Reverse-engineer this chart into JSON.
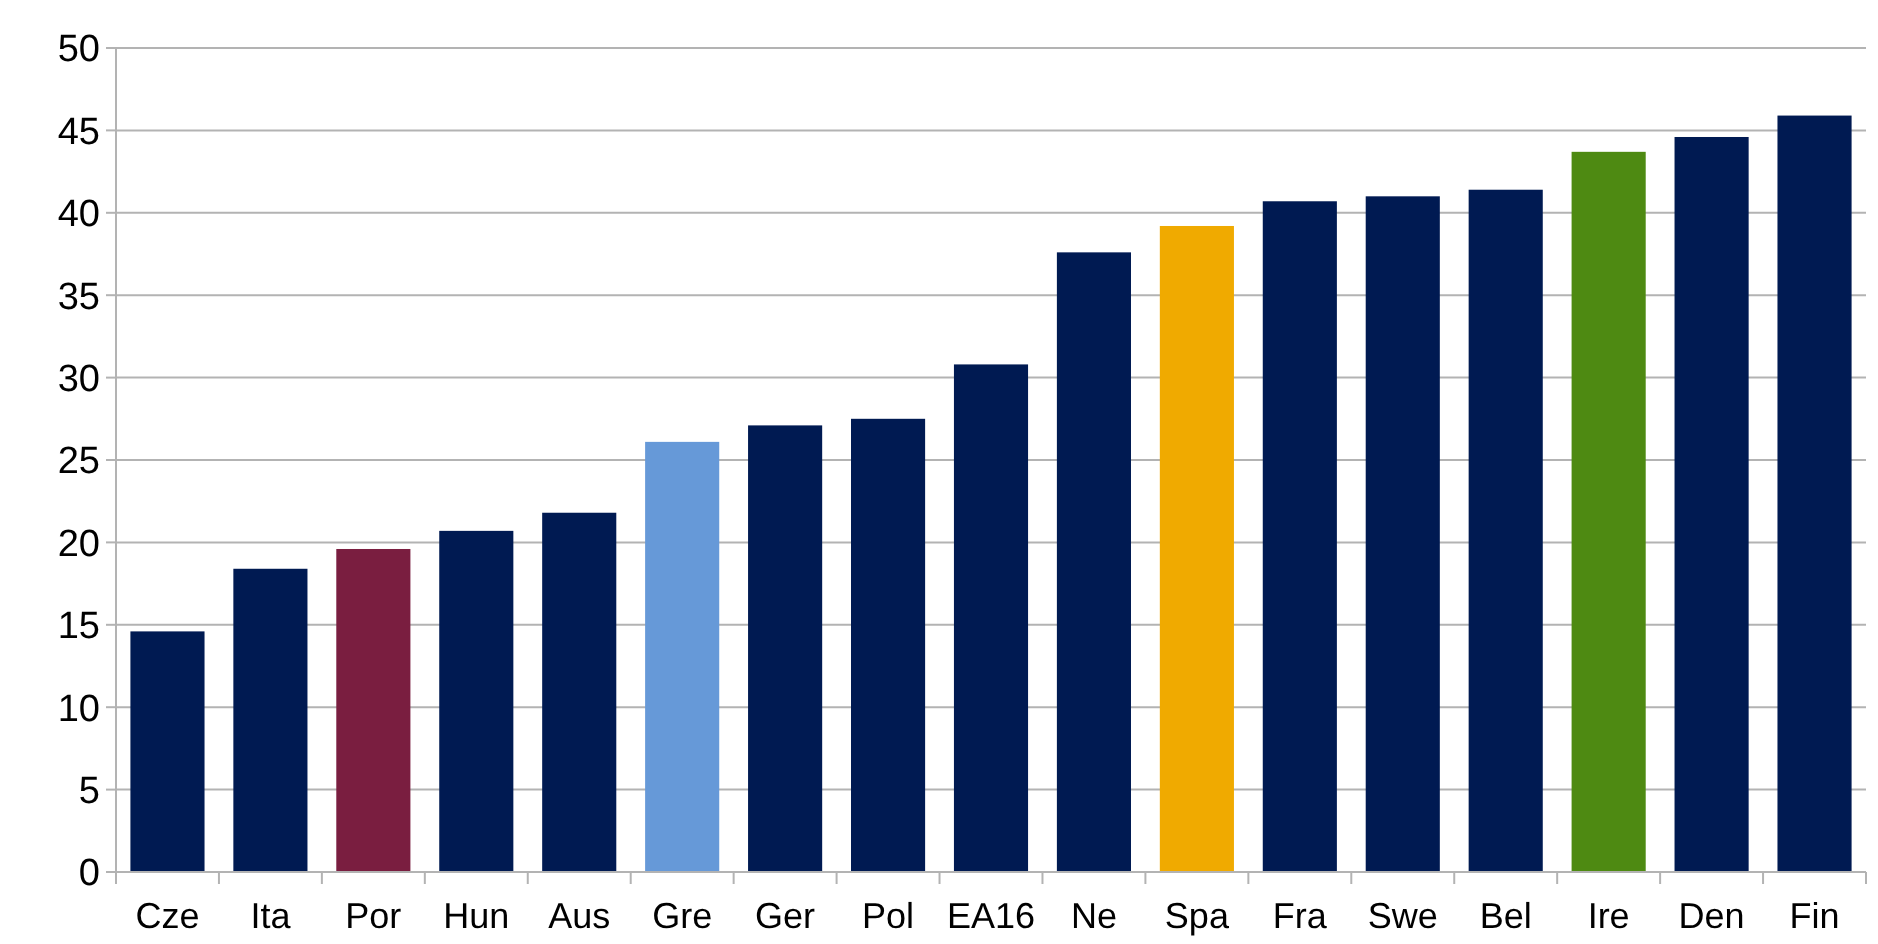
{
  "chart_data": {
    "type": "bar",
    "categories": [
      "Cze",
      "Ita",
      "Por",
      "Hun",
      "Aus",
      "Gre",
      "Ger",
      "Pol",
      "EA16",
      "Ne",
      "Spa",
      "Fra",
      "Swe",
      "Bel",
      "Ire",
      "Den",
      "Fin"
    ],
    "values": [
      14.6,
      18.4,
      19.6,
      20.7,
      21.8,
      26.1,
      27.1,
      27.5,
      30.8,
      37.6,
      39.2,
      40.7,
      41.0,
      41.4,
      43.7,
      44.6,
      45.9
    ],
    "colors": [
      "#001a52",
      "#001a52",
      "#7a1e40",
      "#001a52",
      "#001a52",
      "#6699d8",
      "#001a52",
      "#001a52",
      "#001a52",
      "#001a52",
      "#f0aa00",
      "#001a52",
      "#001a52",
      "#001a52",
      "#4e8a12",
      "#001a52",
      "#001a52"
    ],
    "ylim": [
      0,
      50
    ],
    "yticks": [
      0,
      5,
      10,
      15,
      20,
      25,
      30,
      35,
      40,
      45,
      50
    ],
    "grid": "y"
  }
}
